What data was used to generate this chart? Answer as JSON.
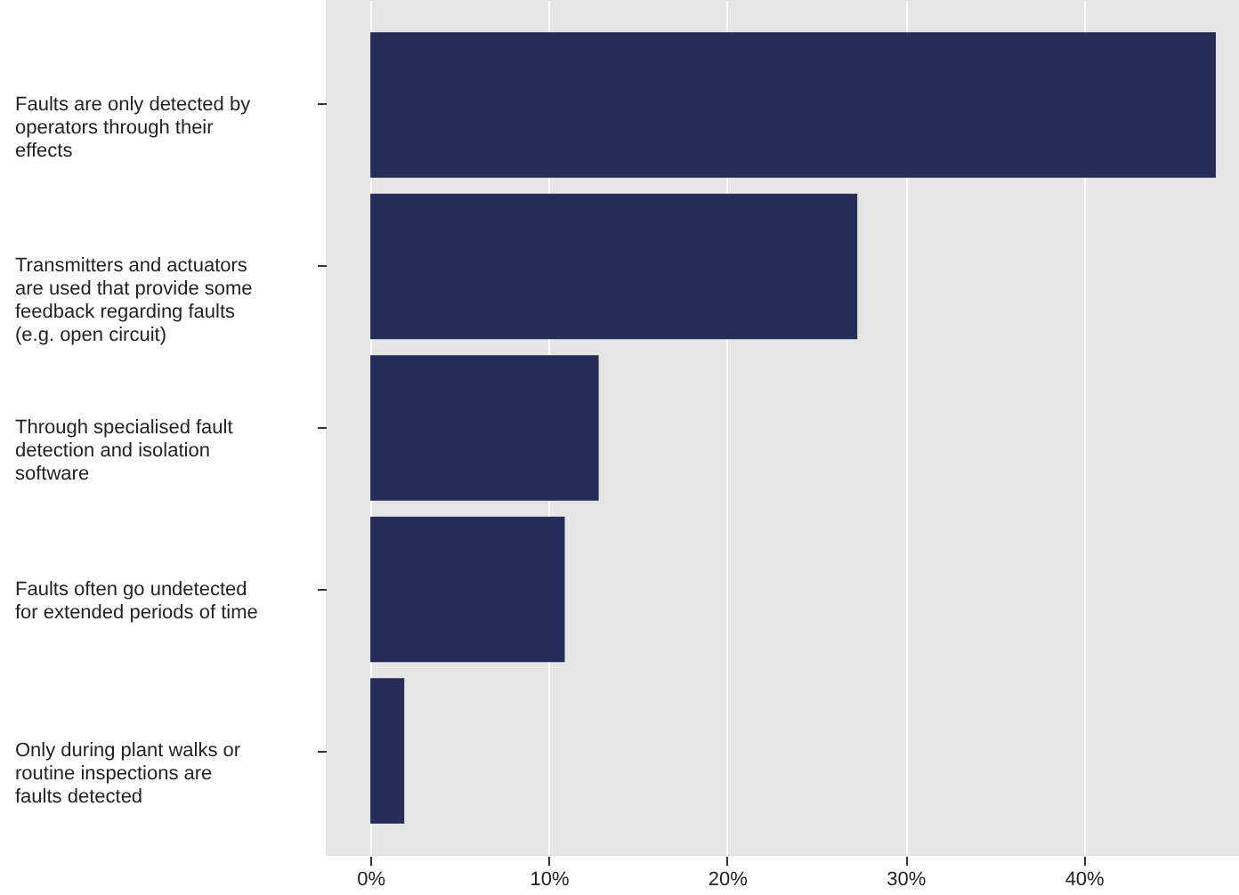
{
  "chart_data": {
    "type": "bar",
    "orientation": "horizontal",
    "categories": [
      "Faults are only detected by operators through their effects",
      "Transmitters and actuators are used that provide some feedback regarding faults (e.g. open circuit)",
      "Through specialised fault detection and isolation software",
      "Faults often go undetected for extended periods of time",
      "Only during plant walks or routine inspections are faults detected"
    ],
    "values": [
      47.4,
      27.3,
      12.8,
      10.9,
      1.9
    ],
    "color": "#252d57",
    "xlim": [
      -2.5,
      48.7
    ],
    "xticks": [
      {
        "value": 0,
        "label": "0%"
      },
      {
        "value": 10,
        "label": "10%"
      },
      {
        "value": 20,
        "label": "20%"
      },
      {
        "value": 30,
        "label": "30%"
      },
      {
        "value": 40,
        "label": "40%"
      }
    ],
    "grid": "x"
  }
}
